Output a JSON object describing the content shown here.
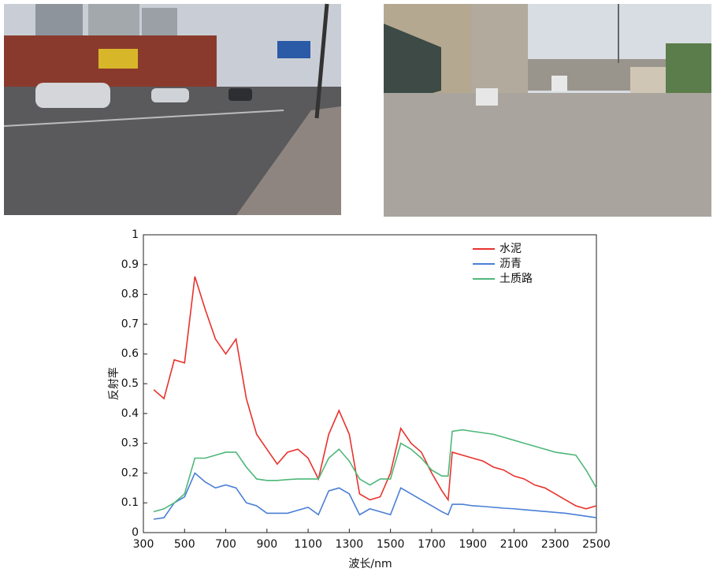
{
  "chart_data": {
    "type": "line",
    "x_label": "波长/nm",
    "y_label": "反射率",
    "x": [
      350,
      400,
      450,
      500,
      550,
      600,
      650,
      700,
      750,
      800,
      850,
      900,
      950,
      1000,
      1050,
      1100,
      1150,
      1200,
      1250,
      1300,
      1350,
      1400,
      1450,
      1500,
      1550,
      1600,
      1650,
      1700,
      1750,
      1780,
      1800,
      1850,
      1900,
      1950,
      2000,
      2050,
      2100,
      2150,
      2200,
      2250,
      2300,
      2350,
      2400,
      2450,
      2500
    ],
    "series": [
      {
        "name": "水泥",
        "color": "#e8322d",
        "values": [
          0.48,
          0.45,
          0.58,
          0.57,
          0.86,
          0.75,
          0.65,
          0.6,
          0.65,
          0.45,
          0.33,
          0.28,
          0.23,
          0.27,
          0.28,
          0.25,
          0.18,
          0.33,
          0.41,
          0.33,
          0.13,
          0.11,
          0.12,
          0.2,
          0.35,
          0.3,
          0.27,
          0.2,
          0.14,
          0.11,
          0.27,
          0.26,
          0.25,
          0.24,
          0.22,
          0.21,
          0.19,
          0.18,
          0.16,
          0.15,
          0.13,
          0.11,
          0.09,
          0.08,
          0.09
        ]
      },
      {
        "name": "沥青",
        "color": "#4a7fd6",
        "values": [
          0.045,
          0.05,
          0.1,
          0.12,
          0.2,
          0.17,
          0.15,
          0.16,
          0.15,
          0.1,
          0.09,
          0.065,
          0.065,
          0.065,
          0.075,
          0.085,
          0.06,
          0.14,
          0.15,
          0.13,
          0.06,
          0.08,
          0.07,
          0.06,
          0.15,
          0.13,
          0.11,
          0.09,
          0.07,
          0.06,
          0.095,
          0.095,
          0.09,
          0.088,
          0.085,
          0.082,
          0.08,
          0.077,
          0.074,
          0.071,
          0.068,
          0.065,
          0.06,
          0.055,
          0.05
        ]
      },
      {
        "name": "土质路",
        "color": "#4fb779",
        "values": [
          0.07,
          0.08,
          0.1,
          0.13,
          0.25,
          0.25,
          0.26,
          0.27,
          0.27,
          0.22,
          0.18,
          0.175,
          0.175,
          0.178,
          0.18,
          0.18,
          0.18,
          0.25,
          0.28,
          0.24,
          0.18,
          0.16,
          0.18,
          0.18,
          0.3,
          0.28,
          0.25,
          0.21,
          0.19,
          0.19,
          0.34,
          0.345,
          0.34,
          0.335,
          0.33,
          0.32,
          0.31,
          0.3,
          0.29,
          0.28,
          0.27,
          0.265,
          0.26,
          0.21,
          0.15
        ]
      }
    ],
    "xlim": [
      300,
      2500
    ],
    "xticks": [
      300,
      500,
      700,
      900,
      1100,
      1300,
      1500,
      1700,
      1900,
      2100,
      2300,
      2500
    ],
    "ylim": [
      0,
      1
    ],
    "yticks": [
      0,
      0.1,
      0.2,
      0.3,
      0.4,
      0.5,
      0.6,
      0.7,
      0.8,
      0.9,
      1
    ],
    "legend": "upper right"
  }
}
